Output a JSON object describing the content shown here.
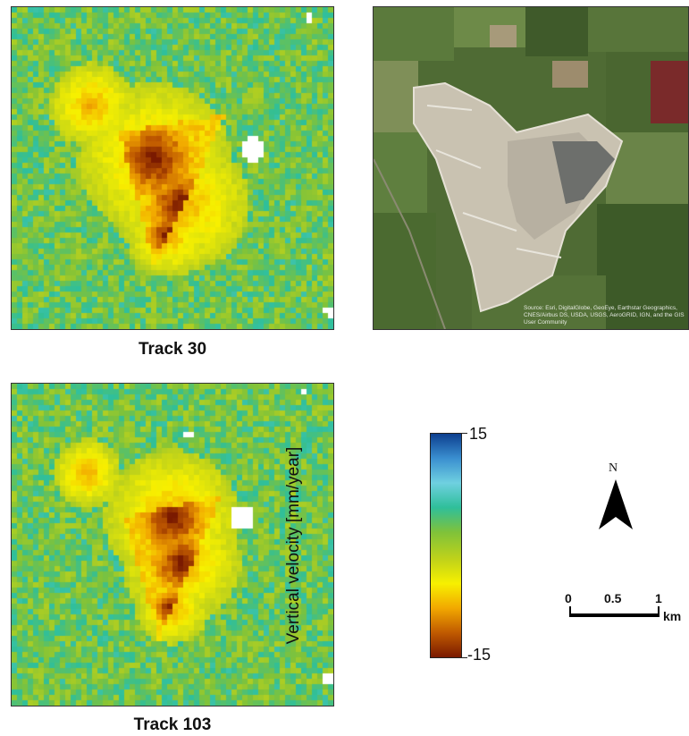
{
  "panels": {
    "track30": {
      "caption": "Track 30"
    },
    "track103": {
      "caption": "Track 103"
    },
    "aerial": {
      "attribution": "Source: Esri, DigitalGlobe, GeoEye, Earthstar Geographics, CNES/Airbus DS, USDA, USGS, AeroGRID, IGN, and the GIS User Community"
    }
  },
  "colorbar": {
    "label": "Vertical velocity [mm/year]",
    "max_label": "15",
    "min_label": "-15",
    "colors": [
      "#0d3f8f",
      "#3a8fd0",
      "#6fd0e0",
      "#2fbf9a",
      "#7fc23a",
      "#bfd21a",
      "#f7f000",
      "#f2a800",
      "#c05a00",
      "#7a1a00"
    ]
  },
  "north_arrow": {
    "letter": "N"
  },
  "scalebar": {
    "labels": [
      "0",
      "0.5",
      "1"
    ],
    "unit": "km"
  }
}
